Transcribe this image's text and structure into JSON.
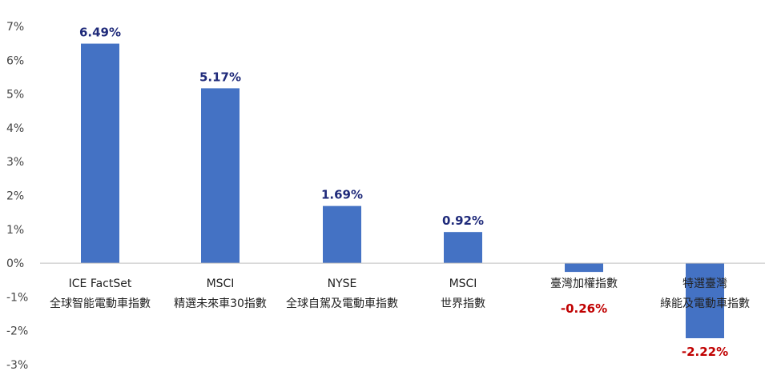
{
  "chart_data": {
    "type": "bar",
    "title": "",
    "xlabel": "",
    "ylabel": "",
    "ylim": [
      -3,
      7
    ],
    "yticks": [
      7,
      6,
      5,
      4,
      3,
      2,
      1,
      0,
      -1,
      -2,
      -3
    ],
    "ytick_labels": [
      "7%",
      "6%",
      "5%",
      "4%",
      "3%",
      "2%",
      "1%",
      "0%",
      "-1%",
      "-2%",
      "-3%"
    ],
    "grid": false,
    "categories": [
      [
        "ICE FactSet",
        "全球智能電動車指數"
      ],
      [
        "MSCI",
        "精選未來車30指數"
      ],
      [
        "NYSE",
        "全球自駕及電動車指數"
      ],
      [
        "MSCI",
        "世界指數"
      ],
      [
        "臺灣加權指數"
      ],
      [
        "特選臺灣",
        "綠能及電動車指數"
      ]
    ],
    "values": [
      6.49,
      5.17,
      1.69,
      0.92,
      -0.26,
      -2.22
    ],
    "value_labels": [
      "6.49%",
      "5.17%",
      "1.69%",
      "0.92%",
      "-0.26%",
      "-2.22%"
    ],
    "colors": {
      "bar": "#4472C4",
      "positive_label": "#1F2A7A",
      "negative_label": "#C00000",
      "axis": "#bfbfbf"
    }
  }
}
